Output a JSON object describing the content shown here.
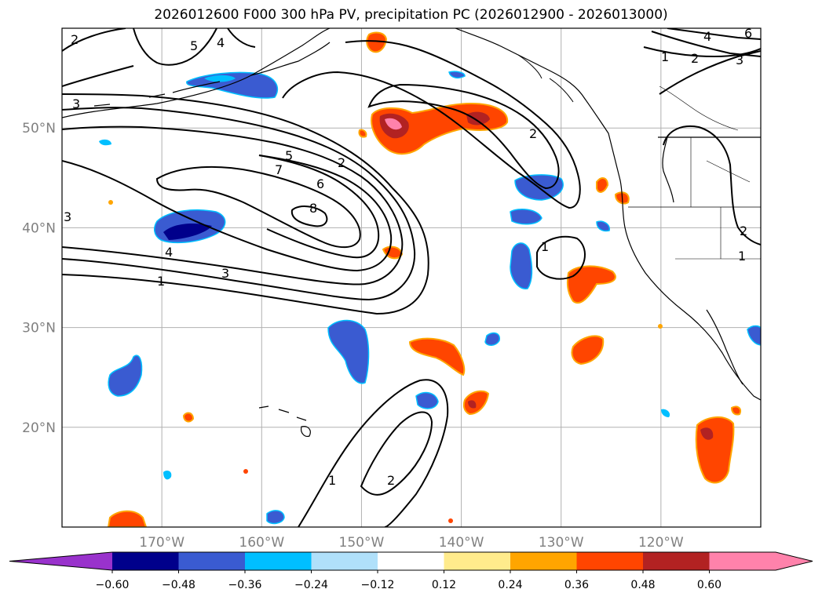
{
  "title": "2026012600 F000 300 hPa PV, precipitation PC (2026012900 - 2026013000)",
  "map": {
    "lon_range": [
      -180,
      -110
    ],
    "lat_range": [
      10,
      60
    ],
    "lon_ticks": [
      {
        "value": -170,
        "label": "170°W"
      },
      {
        "value": -160,
        "label": "160°W"
      },
      {
        "value": -150,
        "label": "150°W"
      },
      {
        "value": -140,
        "label": "140°W"
      },
      {
        "value": -130,
        "label": "130°W"
      },
      {
        "value": -120,
        "label": "120°W"
      }
    ],
    "lat_ticks": [
      {
        "value": 50,
        "label": "50°N"
      },
      {
        "value": 40,
        "label": "40°N"
      },
      {
        "value": 30,
        "label": "30°N"
      },
      {
        "value": 20,
        "label": "20°N"
      }
    ],
    "grid": true
  },
  "colorbar": {
    "colors": [
      "#9932cc",
      "#00008b",
      "#3a5bd1",
      "#00bfff",
      "#b0e0fa",
      "#ffffff",
      "#ffeb8c",
      "#ffa500",
      "#ff4500",
      "#b22222",
      "#ff82ab",
      "#ff82ab"
    ],
    "labels": [
      "−0.60",
      "−0.48",
      "−0.36",
      "−0.24",
      "−0.12",
      "0.12",
      "0.24",
      "0.36",
      "0.48",
      "0.60"
    ],
    "extend": "both"
  },
  "contour_labels": [
    "1",
    "2",
    "3",
    "4",
    "5",
    "6",
    "7",
    "8"
  ]
}
